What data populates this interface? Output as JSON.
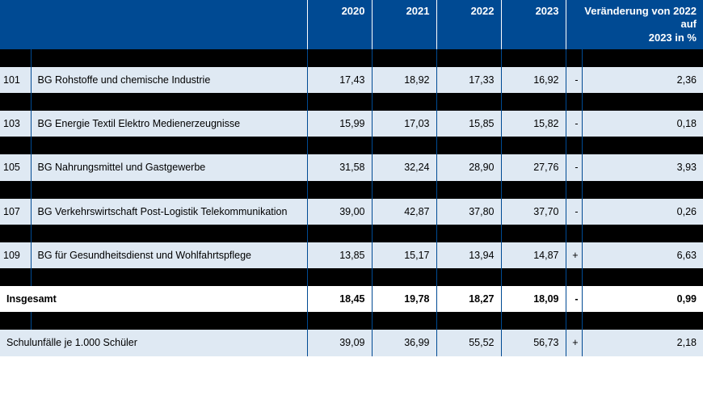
{
  "header": {
    "y2020": "2020",
    "y2021": "2021",
    "y2022": "2022",
    "y2023": "2023",
    "change_l1": "Veränderung von 2022 auf",
    "change_l2": "2023 in %"
  },
  "rows": [
    {
      "num": "101",
      "label": "BG Rohstoffe und chemische Industrie",
      "y2020": "17,43",
      "y2021": "18,92",
      "y2022": "17,33",
      "y2023": "16,92",
      "sign": "-",
      "chg": "2,36"
    },
    {
      "num": "103",
      "label": "BG Energie Textil Elektro Medienerzeugnisse",
      "y2020": "15,99",
      "y2021": "17,03",
      "y2022": "15,85",
      "y2023": "15,82",
      "sign": "-",
      "chg": "0,18"
    },
    {
      "num": "105",
      "label": "BG Nahrungsmittel und Gastgewerbe",
      "y2020": "31,58",
      "y2021": "32,24",
      "y2022": "28,90",
      "y2023": "27,76",
      "sign": "-",
      "chg": "3,93"
    },
    {
      "num": "107",
      "label": "BG Verkehrswirtschaft Post-Logistik Telekommunikation",
      "y2020": "39,00",
      "y2021": "42,87",
      "y2022": "37,80",
      "y2023": "37,70",
      "sign": "-",
      "chg": "0,26"
    },
    {
      "num": "109",
      "label": "BG für Gesundheitsdienst und Wohlfahrtspflege",
      "y2020": "13,85",
      "y2021": "15,17",
      "y2022": "13,94",
      "y2023": "14,87",
      "sign": "+",
      "chg": "6,63"
    }
  ],
  "total": {
    "label": "Insgesamt",
    "y2020": "18,45",
    "y2021": "19,78",
    "y2022": "18,27",
    "y2023": "18,09",
    "sign": "-",
    "chg": "0,99"
  },
  "extra": {
    "label": "Schulunfälle je 1.000 Schüler",
    "y2020": "39,09",
    "y2021": "36,99",
    "y2022": "55,52",
    "y2023": "56,73",
    "sign": "+",
    "chg": "2,18"
  },
  "colors": {
    "header_bg": "#004a93",
    "header_fg": "#ffffff",
    "row_light": "#dfe9f3",
    "row_black": "#000000",
    "border": "#004a93"
  }
}
